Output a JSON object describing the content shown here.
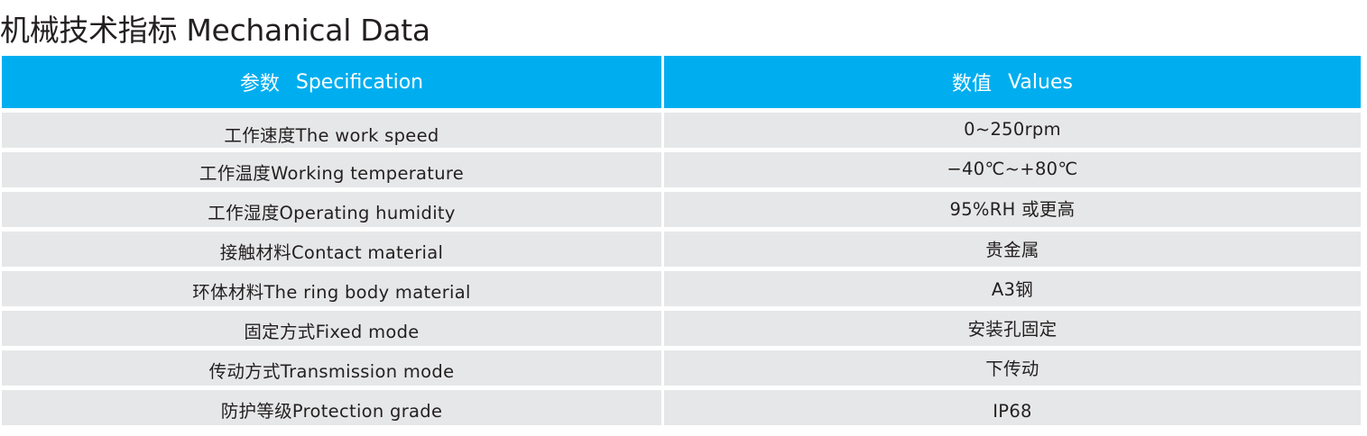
{
  "title": "机械技术指标 Mechanical Data",
  "table": {
    "headers": {
      "spec_cn": "参数",
      "spec_en": "Specification",
      "values_cn": "数值",
      "values_en": "Values"
    },
    "rows": [
      {
        "spec": "工作速度The work speed",
        "value": "0~250rpm"
      },
      {
        "spec": "工作温度Working temperature",
        "value": "−40℃~+80℃"
      },
      {
        "spec": "工作湿度Operating humidity",
        "value": "95%RH 或更高"
      },
      {
        "spec": "接触材料Contact material",
        "value": "贵金属"
      },
      {
        "spec": "环体材料The ring body material",
        "value": "A3钢"
      },
      {
        "spec": "固定方式Fixed mode",
        "value": "安装孔固定"
      },
      {
        "spec": "传动方式Transmission mode",
        "value": "下传动"
      },
      {
        "spec": "防护等级Protection grade",
        "value": "IP68"
      }
    ]
  }
}
